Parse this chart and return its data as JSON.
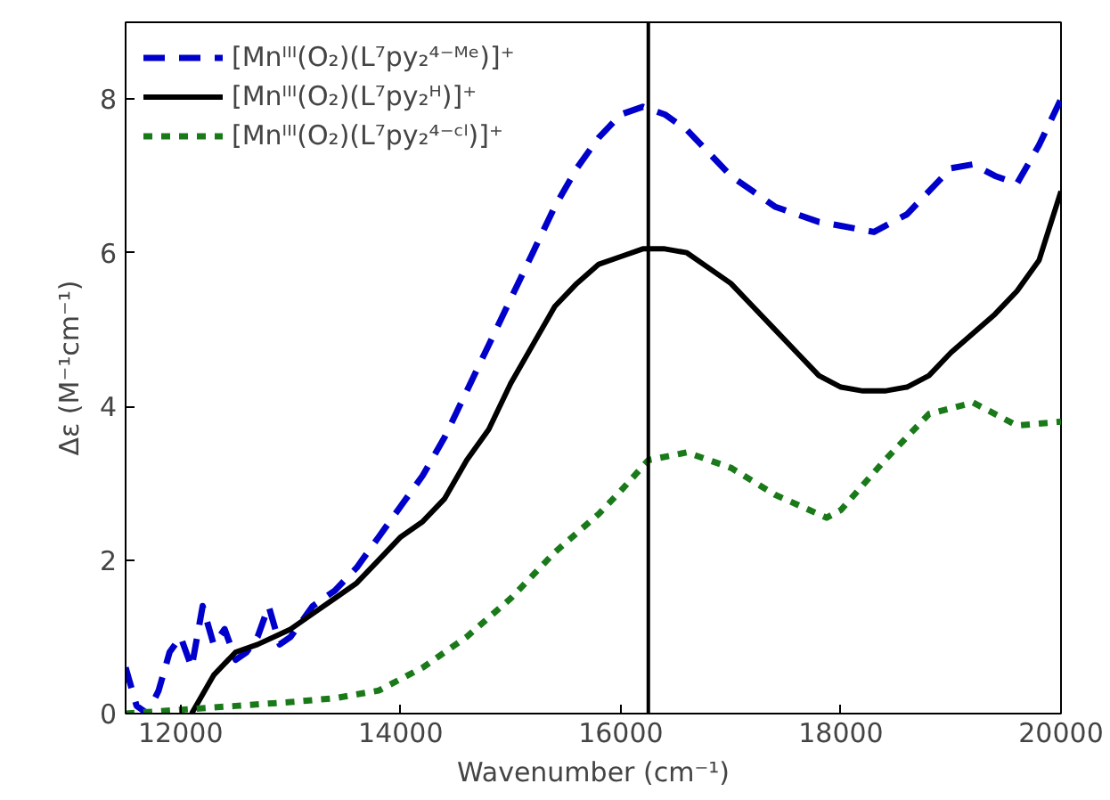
{
  "chart_data": {
    "type": "line",
    "xlabel": "Wavenumber (cm⁻¹)",
    "ylabel": "Δε (M⁻¹cm⁻¹)",
    "xlim": [
      11500,
      20000
    ],
    "ylim": [
      0,
      9
    ],
    "xticks": [
      12000,
      14000,
      16000,
      18000,
      20000
    ],
    "yticks": [
      0,
      2,
      4,
      6,
      8
    ],
    "grid": false,
    "legend": "top left",
    "marker": "none",
    "ref_lines": [
      {
        "axis": "x",
        "value": 16250,
        "color": "#000000",
        "line_style": "solid"
      }
    ],
    "series": [
      {
        "name": "[Mnᴵᴵᴵ(O₂)(L⁷py₂⁴⁻ᴹᵉ)]⁺",
        "color": "#0000cc",
        "line_style": "dashed",
        "x": [
          11500,
          11600,
          11700,
          11800,
          11900,
          12000,
          12100,
          12200,
          12300,
          12400,
          12500,
          12600,
          12700,
          12800,
          12900,
          13000,
          13200,
          13400,
          13600,
          13800,
          14000,
          14200,
          14400,
          14600,
          14800,
          15000,
          15200,
          15400,
          15600,
          15800,
          16000,
          16200,
          16400,
          16600,
          16800,
          17000,
          17200,
          17400,
          17600,
          17800,
          18000,
          18300,
          18600,
          18800,
          19000,
          19200,
          19400,
          19600,
          19800,
          20000
        ],
        "values": [
          0.6,
          0.1,
          0.0,
          0.3,
          0.8,
          1.0,
          0.6,
          1.4,
          0.9,
          1.1,
          0.7,
          0.8,
          1.0,
          1.4,
          0.9,
          1.0,
          1.4,
          1.6,
          1.9,
          2.3,
          2.7,
          3.1,
          3.6,
          4.2,
          4.8,
          5.4,
          6.0,
          6.6,
          7.1,
          7.5,
          7.8,
          7.9,
          7.8,
          7.6,
          7.3,
          7.0,
          6.8,
          6.6,
          6.5,
          6.4,
          6.35,
          6.27,
          6.5,
          6.8,
          7.1,
          7.15,
          7.0,
          6.9,
          7.4,
          8.0
        ]
      },
      {
        "name": "[Mnᴵᴵᴵ(O₂)(L⁷py₂ᴴ)]⁺",
        "color": "#000000",
        "line_style": "solid",
        "x": [
          12100,
          12300,
          12500,
          12700,
          13000,
          13200,
          13400,
          13600,
          13800,
          14000,
          14200,
          14400,
          14600,
          14800,
          15000,
          15200,
          15400,
          15600,
          15800,
          16000,
          16200,
          16400,
          16600,
          16800,
          17000,
          17200,
          17400,
          17600,
          17800,
          18000,
          18200,
          18400,
          18600,
          18800,
          19000,
          19200,
          19400,
          19600,
          19800,
          20000
        ],
        "values": [
          0.0,
          0.5,
          0.8,
          0.9,
          1.1,
          1.3,
          1.5,
          1.7,
          2.0,
          2.3,
          2.5,
          2.8,
          3.3,
          3.7,
          4.3,
          4.8,
          5.3,
          5.6,
          5.85,
          5.95,
          6.05,
          6.05,
          6.0,
          5.8,
          5.6,
          5.3,
          5.0,
          4.7,
          4.4,
          4.25,
          4.2,
          4.2,
          4.25,
          4.4,
          4.7,
          4.95,
          5.2,
          5.5,
          5.9,
          6.8
        ]
      },
      {
        "name": "[Mnᴵᴵᴵ(O₂)(L⁷py₂⁴⁻ᶜˡ)]⁺",
        "color": "#1a7a1a",
        "line_style": "dotted",
        "x": [
          11500,
          12000,
          12500,
          13000,
          13400,
          13800,
          14200,
          14600,
          15000,
          15400,
          15800,
          16000,
          16250,
          16600,
          17000,
          17400,
          17870,
          18000,
          18400,
          18800,
          19200,
          19600,
          20000
        ],
        "values": [
          0.0,
          0.05,
          0.1,
          0.15,
          0.2,
          0.3,
          0.6,
          1.0,
          1.5,
          2.1,
          2.6,
          2.9,
          3.3,
          3.4,
          3.2,
          2.85,
          2.55,
          2.65,
          3.3,
          3.9,
          4.05,
          3.75,
          3.8
        ]
      }
    ]
  }
}
